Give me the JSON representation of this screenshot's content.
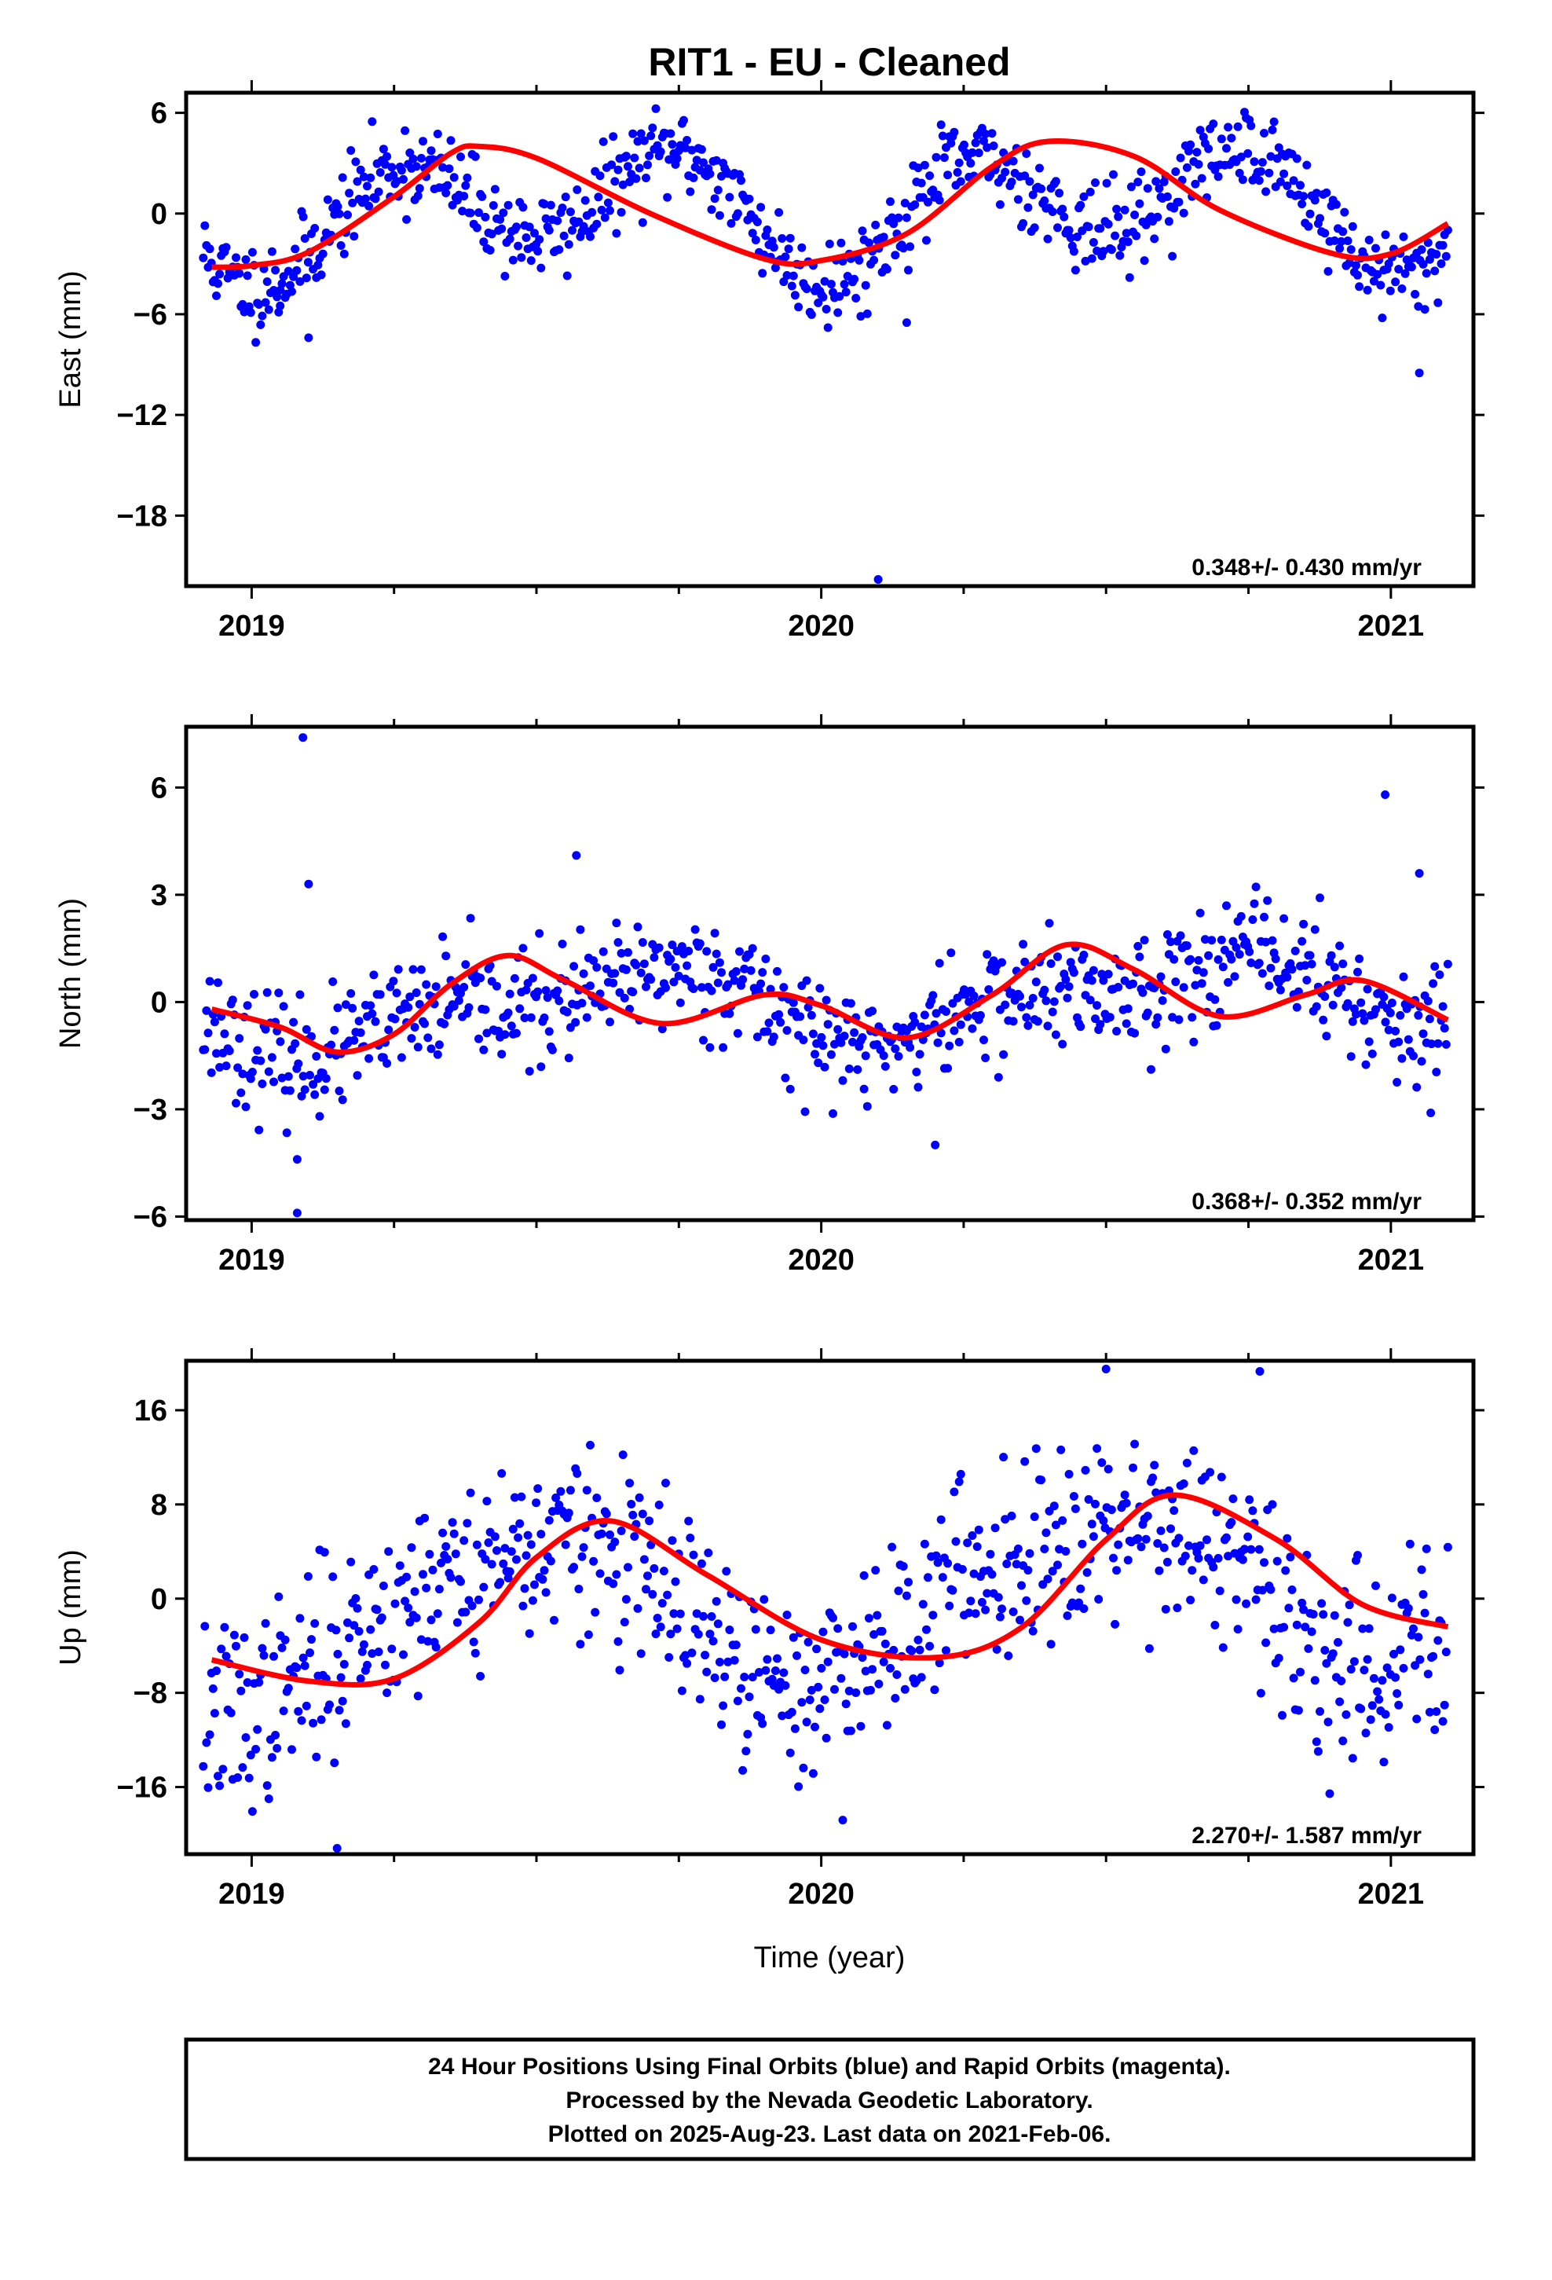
{
  "title": "RIT1  - EU - Cleaned",
  "xlabel": "Time (year)",
  "footer": {
    "line1": "24 Hour Positions Using Final Orbits (blue) and Rapid Orbits (magenta).",
    "line2": "Processed by the Nevada Geodetic Laboratory.",
    "line3": "Plotted on 2025-Aug-23. Last data on 2021-Feb-06."
  },
  "colors": {
    "points": "#0000ff",
    "fit": "#ff0000",
    "frame": "#000000"
  },
  "chart_data": [
    {
      "type": "scatter",
      "ylabel": "East (mm)",
      "xlim": [
        2018.885,
        2021.145
      ],
      "ylim": [
        -22.2,
        7.2
      ],
      "yticks": [
        6,
        0,
        -6,
        -12,
        -18
      ],
      "xticks": [
        2019,
        2020,
        2021
      ],
      "rate": "0.348+/- 0.430 mm/yr",
      "model": {
        "mean": 0.37,
        "trend": 0.348,
        "a1c": -1.4,
        "a1s": -0.4,
        "a2c": -3.0,
        "a2s": -0.2
      },
      "noise": 1.3,
      "seed": 11,
      "outliers": [
        {
          "x": 2019.1,
          "y": -7.4
        },
        {
          "x": 2020.15,
          "y": -6.5
        },
        {
          "x": 2020.1,
          "y": -21.8
        },
        {
          "x": 2021.05,
          "y": -9.5
        },
        {
          "x": 2019.05,
          "y": -5.5
        }
      ],
      "fit_points": [
        {
          "x": 2018.93,
          "y": -3.2
        },
        {
          "x": 2019.0,
          "y": -3.1
        },
        {
          "x": 2019.1,
          "y": -2.3
        },
        {
          "x": 2019.25,
          "y": 1.0
        },
        {
          "x": 2019.35,
          "y": 3.6
        },
        {
          "x": 2019.4,
          "y": 4.0
        },
        {
          "x": 2019.5,
          "y": 3.3
        },
        {
          "x": 2019.7,
          "y": 0.0
        },
        {
          "x": 2019.9,
          "y": -2.7
        },
        {
          "x": 2020.0,
          "y": -2.8
        },
        {
          "x": 2020.15,
          "y": -1.2
        },
        {
          "x": 2020.3,
          "y": 2.8
        },
        {
          "x": 2020.4,
          "y": 4.3
        },
        {
          "x": 2020.55,
          "y": 3.4
        },
        {
          "x": 2020.7,
          "y": 0.2
        },
        {
          "x": 2020.9,
          "y": -2.4
        },
        {
          "x": 2021.0,
          "y": -2.4
        },
        {
          "x": 2021.1,
          "y": -0.6
        }
      ]
    },
    {
      "type": "scatter",
      "ylabel": "North (mm)",
      "xlim": [
        2018.885,
        2021.145
      ],
      "ylim": [
        -6.1,
        7.7
      ],
      "yticks": [
        6,
        3,
        0,
        -3,
        -6
      ],
      "xticks": [
        2019,
        2020,
        2021
      ],
      "rate": "0.368+/- 0.352 mm/yr",
      "model": {
        "mean": -0.05,
        "trend": 0.368,
        "a1c": -0.5,
        "a1s": -0.7,
        "a2c": -0.4,
        "a2s": -0.3
      },
      "noise": 0.8,
      "seed": 23,
      "outliers": [
        {
          "x": 2019.09,
          "y": 7.4
        },
        {
          "x": 2019.1,
          "y": 3.3
        },
        {
          "x": 2019.08,
          "y": -5.9
        },
        {
          "x": 2019.08,
          "y": -4.4
        },
        {
          "x": 2020.99,
          "y": 5.8
        },
        {
          "x": 2021.05,
          "y": 3.6
        },
        {
          "x": 2019.57,
          "y": 4.1
        },
        {
          "x": 2020.2,
          "y": -4.0
        },
        {
          "x": 2021.07,
          "y": -3.1
        }
      ],
      "fit_points": [
        {
          "x": 2018.93,
          "y": -0.2
        },
        {
          "x": 2019.05,
          "y": -0.7
        },
        {
          "x": 2019.15,
          "y": -1.4
        },
        {
          "x": 2019.25,
          "y": -0.9
        },
        {
          "x": 2019.35,
          "y": 0.5
        },
        {
          "x": 2019.45,
          "y": 1.3
        },
        {
          "x": 2019.55,
          "y": 0.6
        },
        {
          "x": 2019.72,
          "y": -0.6
        },
        {
          "x": 2019.9,
          "y": 0.2
        },
        {
          "x": 2020.0,
          "y": -0.1
        },
        {
          "x": 2020.15,
          "y": -1.0
        },
        {
          "x": 2020.3,
          "y": 0.2
        },
        {
          "x": 2020.43,
          "y": 1.6
        },
        {
          "x": 2020.55,
          "y": 0.9
        },
        {
          "x": 2020.7,
          "y": -0.4
        },
        {
          "x": 2020.85,
          "y": 0.2
        },
        {
          "x": 2020.95,
          "y": 0.6
        },
        {
          "x": 2021.1,
          "y": -0.5
        }
      ]
    },
    {
      "type": "scatter",
      "ylabel": "Up (mm)",
      "xlim": [
        2018.885,
        2021.145
      ],
      "ylim": [
        -21.7,
        20.2
      ],
      "yticks": [
        16,
        8,
        0,
        -8,
        -16
      ],
      "xticks": [
        2019,
        2020,
        2021
      ],
      "rate": "2.270+/- 1.587 mm/yr",
      "model": {
        "mean": -0.25,
        "trend": 2.27,
        "a1c": -6.5,
        "a1s": 0.7,
        "a2c": -0.6,
        "a2s": 1.0
      },
      "noise": 4.0,
      "seed": 37,
      "outliers": [
        {
          "x": 2019.15,
          "y": -21.2
        },
        {
          "x": 2020.5,
          "y": 19.5
        },
        {
          "x": 2020.77,
          "y": 19.3
        }
      ],
      "fit_points": [
        {
          "x": 2018.93,
          "y": -5.2
        },
        {
          "x": 2019.1,
          "y": -7.0
        },
        {
          "x": 2019.25,
          "y": -6.8
        },
        {
          "x": 2019.4,
          "y": -2.0
        },
        {
          "x": 2019.5,
          "y": 3.5
        },
        {
          "x": 2019.63,
          "y": 6.6
        },
        {
          "x": 2019.8,
          "y": 2.0
        },
        {
          "x": 2020.0,
          "y": -3.5
        },
        {
          "x": 2020.2,
          "y": -5.0
        },
        {
          "x": 2020.35,
          "y": -2.5
        },
        {
          "x": 2020.5,
          "y": 5.0
        },
        {
          "x": 2020.62,
          "y": 8.8
        },
        {
          "x": 2020.8,
          "y": 5.0
        },
        {
          "x": 2020.95,
          "y": -0.5
        },
        {
          "x": 2021.1,
          "y": -2.4
        }
      ]
    }
  ]
}
